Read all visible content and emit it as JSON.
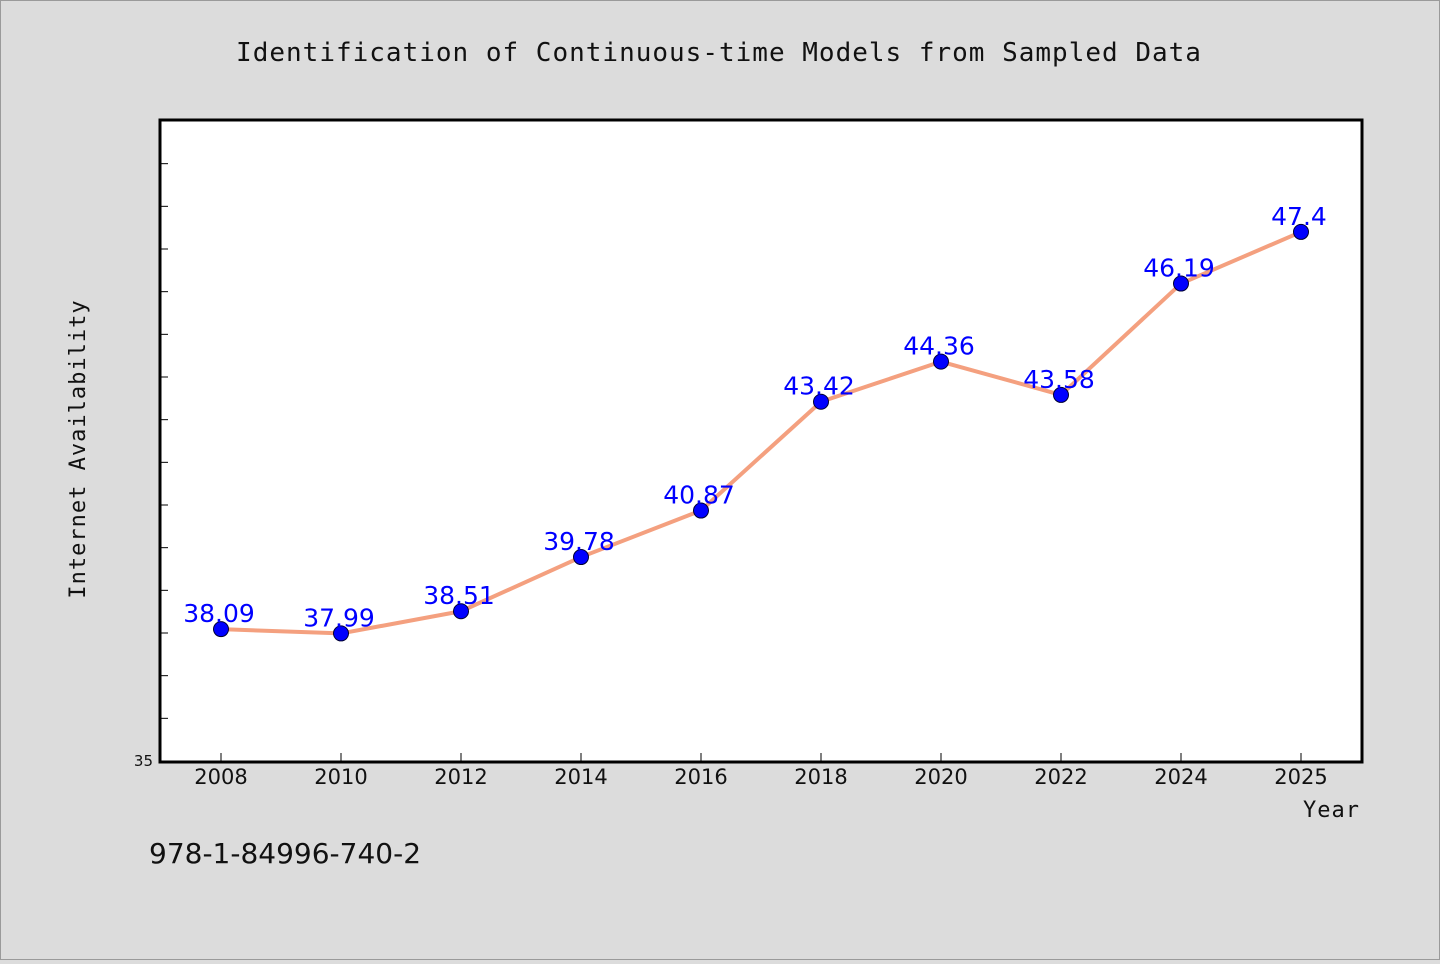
{
  "chart_data": {
    "type": "line",
    "title": "Identification of Continuous-time Models from Sampled Data",
    "xlabel": "Year",
    "ylabel": "Internet Availability",
    "categories": [
      "2008",
      "2010",
      "2012",
      "2014",
      "2016",
      "2018",
      "2020",
      "2022",
      "2024",
      "2025"
    ],
    "series": [
      {
        "values": [
          38.09,
          37.99,
          38.51,
          39.78,
          40.87,
          43.42,
          44.36,
          43.58,
          46.19,
          47.4
        ],
        "data_labels": [
          "38.09",
          "37.99",
          "38.51",
          "39.78",
          "40.87",
          "43.42",
          "44.36",
          "43.58",
          "46.19",
          "47.4"
        ],
        "line_color": "#f4a07f",
        "marker_color": "#0000ff"
      }
    ],
    "y_tick_labels": [
      "35"
    ],
    "ylim": [
      35,
      50
    ],
    "grid": false,
    "legend": "none"
  },
  "footer": {
    "isbn": "978-1-84996-740-2"
  },
  "colors": {
    "background": "#dcdcdc",
    "plot_background": "#ffffff",
    "line": "#f4a07f",
    "marker": "#0000ff",
    "data_label": "#0000ff"
  }
}
